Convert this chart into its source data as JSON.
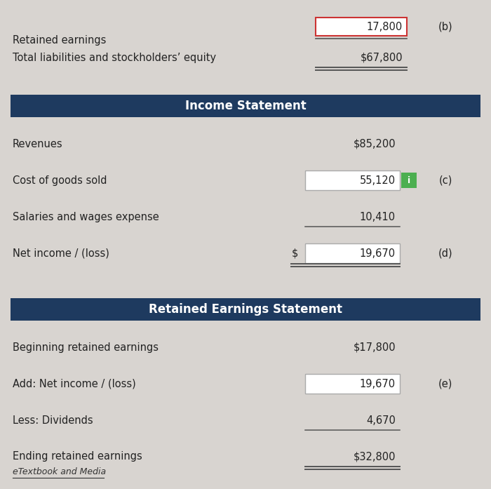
{
  "bg_color": "#d8d4d0",
  "header_color": "#1e3a5f",
  "header_text_color": "#ffffff",
  "green_box_color": "#4CAF50",
  "top_section": {
    "retained_earnings_label": "Retained earnings",
    "retained_earnings_value": "17,800",
    "retained_earnings_note": "(b)",
    "total_label": "Total liabilities and stockholders’ equity",
    "total_value": "$67,800"
  },
  "income_statement": {
    "title": "Income Statement",
    "rows": [
      {
        "label": "Revenues",
        "value": "$85,200",
        "box": false,
        "prefix": "",
        "note": "",
        "info_icon": false,
        "underline": false
      },
      {
        "label": "Cost of goods sold",
        "value": "55,120",
        "box": true,
        "prefix": "",
        "note": "(c)",
        "info_icon": true,
        "underline": false
      },
      {
        "label": "Salaries and wages expense",
        "value": "10,410",
        "box": false,
        "prefix": "",
        "note": "",
        "info_icon": false,
        "underline": true
      },
      {
        "label": "Net income / (loss)",
        "value": "19,670",
        "box": true,
        "prefix": "$",
        "note": "(d)",
        "info_icon": false,
        "underline": false,
        "double_underline": true
      }
    ]
  },
  "retained_earnings_statement": {
    "title": "Retained Earnings Statement",
    "rows": [
      {
        "label": "Beginning retained earnings",
        "value": "$17,800",
        "box": false,
        "note": "",
        "underline": false,
        "double_underline": false
      },
      {
        "label": "Add: Net income / (loss)",
        "value": "19,670",
        "box": true,
        "note": "(e)",
        "underline": false,
        "double_underline": false
      },
      {
        "label": "Less: Dividends",
        "value": "4,670",
        "box": false,
        "note": "",
        "underline": true,
        "double_underline": false
      },
      {
        "label": "Ending retained earnings",
        "value": "$32,800",
        "box": false,
        "note": "",
        "underline": false,
        "double_underline": true
      }
    ]
  },
  "footer": "eTextbook and Media"
}
